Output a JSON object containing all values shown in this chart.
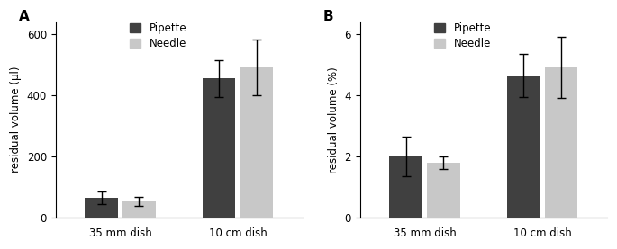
{
  "panel_A": {
    "label": "A",
    "ylabel": "residual volume (µl)",
    "ylim": [
      0,
      640
    ],
    "yticks": [
      0,
      200,
      400,
      600
    ],
    "groups": [
      "35 mm dish",
      "10 cm dish"
    ],
    "pipette_values": [
      65,
      455
    ],
    "pipette_errors": [
      20,
      60
    ],
    "needle_values": [
      55,
      490
    ],
    "needle_errors": [
      15,
      90
    ]
  },
  "panel_B": {
    "label": "B",
    "ylabel": "residual volume (%)",
    "ylim": [
      0,
      6.4
    ],
    "yticks": [
      0,
      2,
      4,
      6
    ],
    "groups": [
      "35 mm dish",
      "10 cm dish"
    ],
    "pipette_values": [
      2.0,
      4.65
    ],
    "pipette_errors": [
      0.65,
      0.7
    ],
    "needle_values": [
      1.8,
      4.9
    ],
    "needle_errors": [
      0.2,
      1.0
    ]
  },
  "pipette_color": "#404040",
  "needle_color": "#c8c8c8",
  "bar_width": 0.28,
  "fontsize": 8.5,
  "label_fontsize": 11,
  "tick_fontsize": 8.5
}
